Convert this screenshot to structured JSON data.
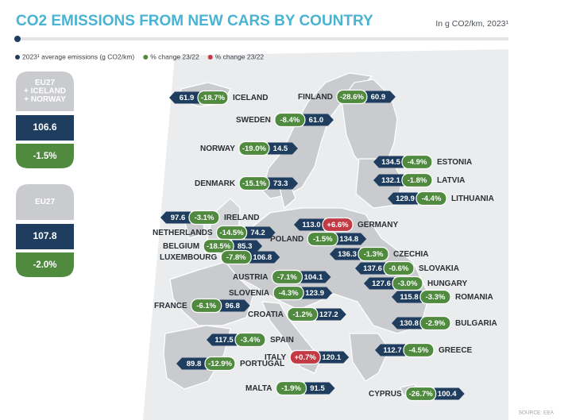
{
  "header": {
    "title": "CO2 EMISSIONS FROM NEW CARS BY COUNTRY",
    "unit": "In g CO2/km, 2023¹"
  },
  "legend": [
    {
      "label": "2023¹ average emissions (g CO2/km)",
      "color": "#1f3d5e"
    },
    {
      "label": "% change 23/22",
      "color": "#4f8a3f"
    },
    {
      "label": "% change 23/22",
      "color": "#c23a44"
    }
  ],
  "summary": [
    {
      "label": [
        "EU27",
        "+ ICELAND",
        "+ NORWAY"
      ],
      "value": "106.6",
      "change": "-1.5%"
    },
    {
      "label": [
        "EU27"
      ],
      "value": "107.8",
      "change": "-2.0%"
    }
  ],
  "countries": [
    {
      "name": "ICELAND",
      "value": "61.9",
      "change": "-18.7%"
    },
    {
      "name": "FINLAND",
      "value": "60.9",
      "change": "-28.6%"
    },
    {
      "name": "SWEDEN",
      "value": "61.0",
      "change": "-8.4%"
    },
    {
      "name": "NORWAY",
      "value": "14.5",
      "change": "-19.0%"
    },
    {
      "name": "DENMARK",
      "value": "73.3",
      "change": "-15.1%"
    },
    {
      "name": "ESTONIA",
      "value": "134.5",
      "change": "-4.9%"
    },
    {
      "name": "LATVIA",
      "value": "132.1",
      "change": "-1.8%"
    },
    {
      "name": "LITHUANIA",
      "value": "129.9",
      "change": "-4.4%"
    },
    {
      "name": "IRELAND",
      "value": "97.6",
      "change": "-3.1%"
    },
    {
      "name": "GERMANY",
      "value": "113.0",
      "change": "+6.6%"
    },
    {
      "name": "NETHERLANDS",
      "value": "74.2",
      "change": "-14.5%"
    },
    {
      "name": "POLAND",
      "value": "134.8",
      "change": "-1.5%"
    },
    {
      "name": "BELGIUM",
      "value": "85.3",
      "change": "-18.5%"
    },
    {
      "name": "LUXEMBOURG",
      "value": "106.8",
      "change": "-7.8%"
    },
    {
      "name": "CZECHIA",
      "value": "136.3",
      "change": "-1.3%"
    },
    {
      "name": "SLOVAKIA",
      "value": "137.6",
      "change": "-0.6%"
    },
    {
      "name": "AUSTRIA",
      "value": "104.1",
      "change": "-7.1%"
    },
    {
      "name": "HUNGARY",
      "value": "127.6",
      "change": "-3.0%"
    },
    {
      "name": "SLOVENIA",
      "value": "123.9",
      "change": "-4.3%"
    },
    {
      "name": "ROMANIA",
      "value": "115.8",
      "change": "-3.3%"
    },
    {
      "name": "FRANCE",
      "value": "96.8",
      "change": "-6.1%"
    },
    {
      "name": "CROATIA",
      "value": "127.2",
      "change": "-1.2%"
    },
    {
      "name": "BULGARIA",
      "value": "130.8",
      "change": "-2.9%"
    },
    {
      "name": "SPAIN",
      "value": "117.5",
      "change": "-3.4%"
    },
    {
      "name": "GREECE",
      "value": "112.7",
      "change": "-4.5%"
    },
    {
      "name": "ITALY",
      "value": "120.1",
      "change": "+0.7%"
    },
    {
      "name": "PORTUGAL",
      "value": "89.8",
      "change": "-12.9%"
    },
    {
      "name": "MALTA",
      "value": "91.5",
      "change": "-1.9%"
    },
    {
      "name": "CYPRUS",
      "value": "100.4",
      "change": "-26.7%"
    }
  ],
  "source": "SOURCE: EEA"
}
